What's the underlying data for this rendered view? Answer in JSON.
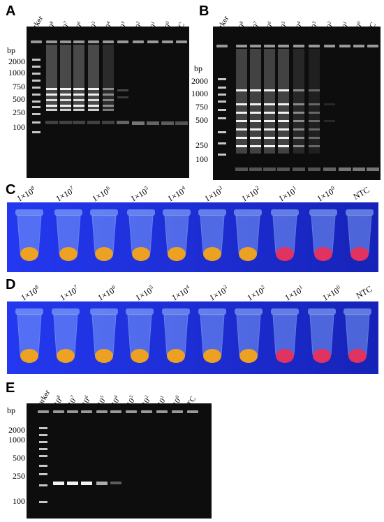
{
  "panels": {
    "A": {
      "letter": "A",
      "lanes": [
        {
          "base": "Marker",
          "exp": ""
        },
        {
          "base": "1×10",
          "exp": "8"
        },
        {
          "base": "1×10",
          "exp": "7"
        },
        {
          "base": "1×10",
          "exp": "6"
        },
        {
          "base": "1×10",
          "exp": "5"
        },
        {
          "base": "1×10",
          "exp": "4"
        },
        {
          "base": "1×10",
          "exp": "3"
        },
        {
          "base": "1×10",
          "exp": "2"
        },
        {
          "base": "1×10",
          "exp": "1"
        },
        {
          "base": "1×10",
          "exp": "0"
        },
        {
          "base": "NTC",
          "exp": ""
        }
      ],
      "bp_unit": "bp",
      "bp_markers": [
        "2000",
        "1000",
        "750",
        "500",
        "250",
        "100"
      ]
    },
    "B": {
      "letter": "B",
      "lanes": [
        {
          "base": "Marker",
          "exp": ""
        },
        {
          "base": "1×10",
          "exp": "8"
        },
        {
          "base": "1×10",
          "exp": "7"
        },
        {
          "base": "1×10",
          "exp": "6"
        },
        {
          "base": "1×10",
          "exp": "5"
        },
        {
          "base": "1×10",
          "exp": "4"
        },
        {
          "base": "1×10",
          "exp": "3"
        },
        {
          "base": "1×10",
          "exp": "2"
        },
        {
          "base": "1×10",
          "exp": "1"
        },
        {
          "base": "1×10",
          "exp": "0"
        },
        {
          "base": "NTC",
          "exp": ""
        }
      ],
      "bp_unit": "bp",
      "bp_markers": [
        "2000",
        "1000",
        "750",
        "500",
        "250",
        "100"
      ]
    },
    "C": {
      "letter": "C",
      "tubes": [
        {
          "base": "1×10",
          "exp": "8"
        },
        {
          "base": "1×10",
          "exp": "7"
        },
        {
          "base": "1×10",
          "exp": "6"
        },
        {
          "base": "1×10",
          "exp": "5"
        },
        {
          "base": "1×10",
          "exp": "4"
        },
        {
          "base": "1×10",
          "exp": "3"
        },
        {
          "base": "1×10",
          "exp": "2"
        },
        {
          "base": "1×10",
          "exp": "1"
        },
        {
          "base": "1×10",
          "exp": "0"
        },
        {
          "base": "NTC",
          "exp": ""
        }
      ]
    },
    "D": {
      "letter": "D",
      "tubes": [
        {
          "base": "1×10",
          "exp": "8"
        },
        {
          "base": "1×10",
          "exp": "7"
        },
        {
          "base": "1×10",
          "exp": "6"
        },
        {
          "base": "1×10",
          "exp": "5"
        },
        {
          "base": "1×10",
          "exp": "4"
        },
        {
          "base": "1×10",
          "exp": "3"
        },
        {
          "base": "1×10",
          "exp": "2"
        },
        {
          "base": "1×10",
          "exp": "1"
        },
        {
          "base": "1×10",
          "exp": "0"
        },
        {
          "base": "NTC",
          "exp": ""
        }
      ]
    },
    "E": {
      "letter": "E",
      "lanes": [
        {
          "base": "Marker",
          "exp": ""
        },
        {
          "base": "1×10",
          "exp": "8"
        },
        {
          "base": "1×10",
          "exp": "7"
        },
        {
          "base": "1×10",
          "exp": "6"
        },
        {
          "base": "1×10",
          "exp": "5"
        },
        {
          "base": "1×10",
          "exp": "4"
        },
        {
          "base": "1×10",
          "exp": "3"
        },
        {
          "base": "1×10",
          "exp": "2"
        },
        {
          "base": "1×10",
          "exp": "1"
        },
        {
          "base": "1×10",
          "exp": "0"
        },
        {
          "base": "NTC",
          "exp": ""
        }
      ],
      "bp_unit": "bp",
      "bp_markers": [
        "2000",
        "1000",
        "500",
        "250",
        "100"
      ]
    }
  },
  "colors": {
    "gel_background": "#0d0d0d",
    "band": "#f2f2f2",
    "tube_background": "#1c2fe0",
    "positive_tube": "#f5a418",
    "negative_tube": "#e8305a"
  }
}
